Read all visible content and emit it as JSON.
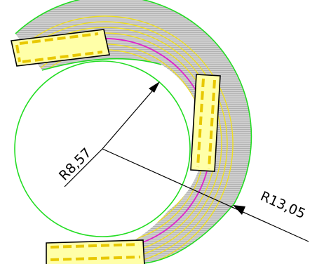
{
  "drawing": {
    "colors": {
      "background": "#ffffff",
      "outline": "#22dd22",
      "hatch": "#aaaaaa",
      "yellow_path": "#f0e020",
      "magenta_path": "#e020d0",
      "orange_path": "#d07a20",
      "block_fill": "#ffffa8",
      "block_dash": "#e8c800",
      "dimension": "#000000"
    },
    "dimensions": {
      "inner_radius_label": "R8,57",
      "outer_radius_label": "R13,05"
    }
  }
}
